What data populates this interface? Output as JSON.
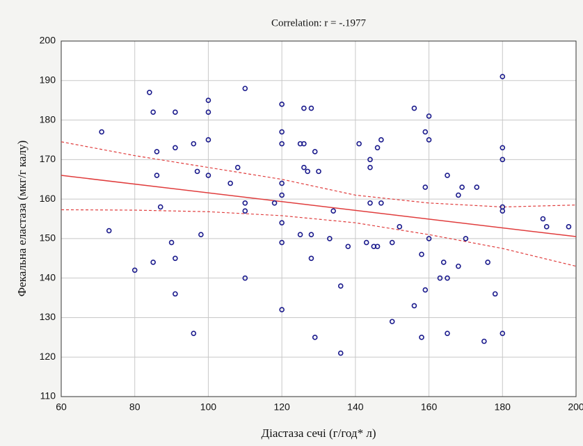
{
  "chart_data": {
    "type": "scatter",
    "title": "Correlation: r = -.1977",
    "x_label": "Діастаза сечі (г/год* л)",
    "y_label": "Фекальна еластаза (мкг/г калу)",
    "x": [
      71,
      73,
      80,
      84,
      85,
      85,
      86,
      86,
      87,
      90,
      91,
      91,
      91,
      91,
      96,
      96,
      97,
      98,
      100,
      100,
      100,
      100,
      106,
      108,
      110,
      110,
      110,
      110,
      118,
      120,
      120,
      120,
      120,
      120,
      120,
      120,
      120,
      125,
      125,
      126,
      126,
      126,
      127,
      128,
      128,
      128,
      129,
      129,
      130,
      133,
      134,
      136,
      136,
      138,
      141,
      143,
      144,
      144,
      144,
      145,
      146,
      146,
      147,
      147,
      150,
      150,
      152,
      156,
      156,
      158,
      158,
      159,
      159,
      159,
      160,
      160,
      160,
      163,
      164,
      165,
      165,
      165,
      168,
      168,
      169,
      170,
      173,
      175,
      176,
      178,
      180,
      180,
      180,
      180,
      180,
      180,
      191,
      192,
      198
    ],
    "y": [
      177,
      152,
      142,
      187,
      182,
      144,
      172,
      166,
      158,
      149,
      182,
      173,
      145,
      136,
      174,
      126,
      167,
      151,
      185,
      182,
      175,
      166,
      164,
      168,
      188,
      159,
      157,
      140,
      159,
      184,
      177,
      174,
      164,
      161,
      154,
      149,
      132,
      151,
      174,
      183,
      174,
      168,
      167,
      145,
      151,
      183,
      172,
      125,
      167,
      150,
      157,
      138,
      121,
      148,
      174,
      149,
      170,
      168,
      159,
      148,
      148,
      173,
      175,
      159,
      149,
      129,
      153,
      183,
      133,
      146,
      125,
      163,
      137,
      177,
      181,
      175,
      150,
      140,
      144,
      166,
      140,
      126,
      161,
      143,
      163,
      150,
      163,
      124,
      144,
      136,
      191,
      173,
      170,
      158,
      157,
      126,
      155,
      153,
      153
    ],
    "color": "#1a1a8c",
    "fit_line": {
      "x": [
        60,
        200
      ],
      "y": [
        166,
        150.5
      ]
    },
    "confidence_x": [
      60,
      80,
      100,
      120,
      140,
      160,
      180,
      200
    ],
    "confidence_upper": [
      174.5,
      171,
      168,
      165,
      161,
      159,
      158,
      158.5
    ],
    "confidence_lower": [
      157.3,
      157.2,
      156.8,
      155.8,
      154,
      151,
      147.5,
      143
    ],
    "fit_color": "#e03c3c",
    "xlim": [
      60,
      200
    ],
    "ylim": [
      110,
      200
    ],
    "xticks": [
      60,
      80,
      100,
      120,
      140,
      160,
      180,
      200
    ],
    "yticks": [
      110,
      120,
      130,
      140,
      150,
      160,
      170,
      180,
      190,
      200
    ],
    "grid": true
  }
}
